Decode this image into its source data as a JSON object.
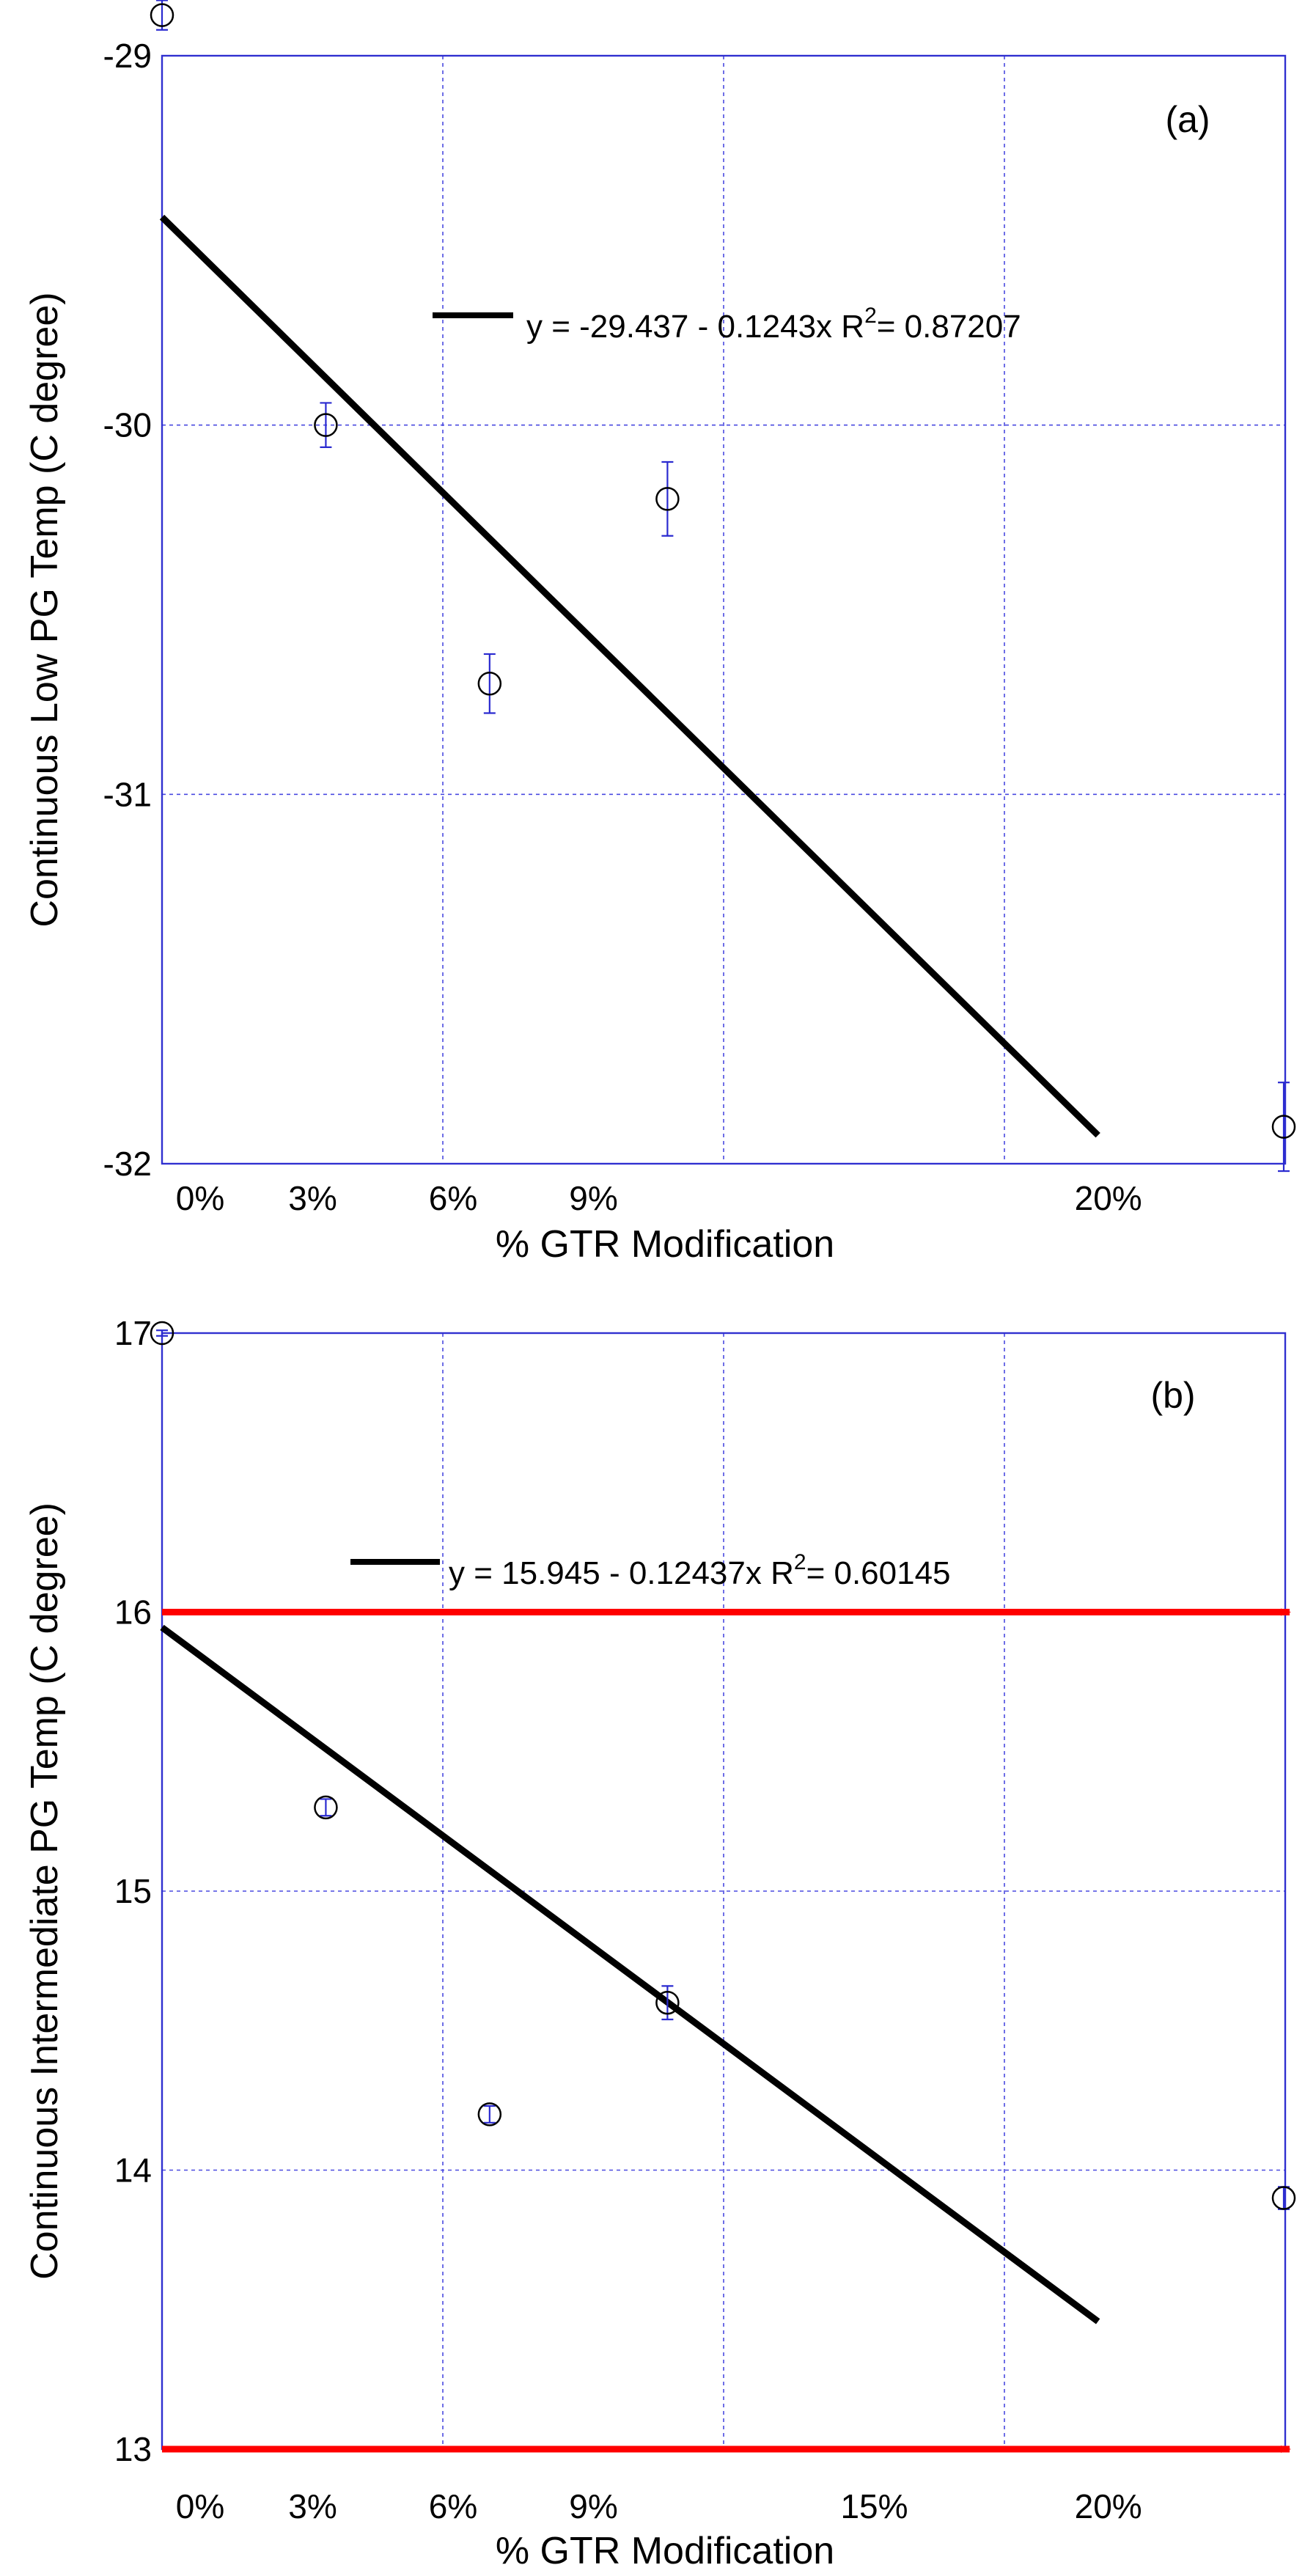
{
  "chart_data": [
    {
      "type": "scatter",
      "panel_label": "(a)",
      "xlabel": "% GTR Modification",
      "ylabel": "Continuous Low PG Temp (C degree)",
      "xlim": [
        0,
        24
      ],
      "ylim": [
        -32,
        -29
      ],
      "ytick_values": [
        -32,
        -31,
        -30,
        -29
      ],
      "ytick_labels": [
        "-32",
        "-31",
        "-30",
        "-29"
      ],
      "xtick_values": [
        0,
        3,
        6,
        9,
        20
      ],
      "xtick_labels": [
        "0%",
        "3%",
        "6%",
        "9%",
        "20%"
      ],
      "xgrid": [
        6,
        12,
        18
      ],
      "points": [
        {
          "x": 0,
          "y": -28.89,
          "err": 0.04
        },
        {
          "x": 3.5,
          "y": -30.0,
          "err": 0.06
        },
        {
          "x": 7,
          "y": -30.7,
          "err": 0.08
        },
        {
          "x": 10.8,
          "y": -30.2,
          "err": 0.1
        },
        {
          "x": 24,
          "y": -31.9,
          "err": 0.12
        }
      ],
      "fit": {
        "intercept": -29.437,
        "slope": -0.1243,
        "x0": 0,
        "x1": 20
      },
      "legend": {
        "equation": "y = -29.437 - 0.1243x",
        "r2_prefix": "R",
        "r2_exp": "2",
        "r2_value": "= 0.87207"
      }
    },
    {
      "type": "scatter",
      "panel_label": "(b)",
      "xlabel": "% GTR Modification",
      "ylabel": "Continuous Intermediate PG Temp (C degree)",
      "xlim": [
        0,
        24
      ],
      "ylim": [
        13,
        17
      ],
      "ytick_values": [
        13,
        14,
        15,
        16,
        17
      ],
      "ytick_labels": [
        "13",
        "14",
        "15",
        "16",
        "17"
      ],
      "xtick_values": [
        0,
        3,
        6,
        9,
        15,
        20
      ],
      "xtick_labels": [
        "0%",
        "3%",
        "6%",
        "9%",
        "15%",
        "20%"
      ],
      "xgrid": [
        6,
        12,
        18
      ],
      "points": [
        {
          "x": 0,
          "y": 17.0,
          "err": 0.01
        },
        {
          "x": 3.5,
          "y": 15.3,
          "err": 0.03
        },
        {
          "x": 7,
          "y": 14.2,
          "err": 0.03
        },
        {
          "x": 10.8,
          "y": 14.6,
          "err": 0.06
        },
        {
          "x": 24,
          "y": 13.9,
          "err": 0.04
        }
      ],
      "fit": {
        "intercept": 15.945,
        "slope": -0.12437,
        "x0": 0,
        "x1": 20
      },
      "legend": {
        "equation": "y = 15.945 - 0.12437x",
        "r2_prefix": "R",
        "r2_exp": "2",
        "r2_value": "= 0.60145"
      },
      "reference_arrows": [
        16,
        13
      ],
      "reference_color": "#ff0000"
    }
  ]
}
